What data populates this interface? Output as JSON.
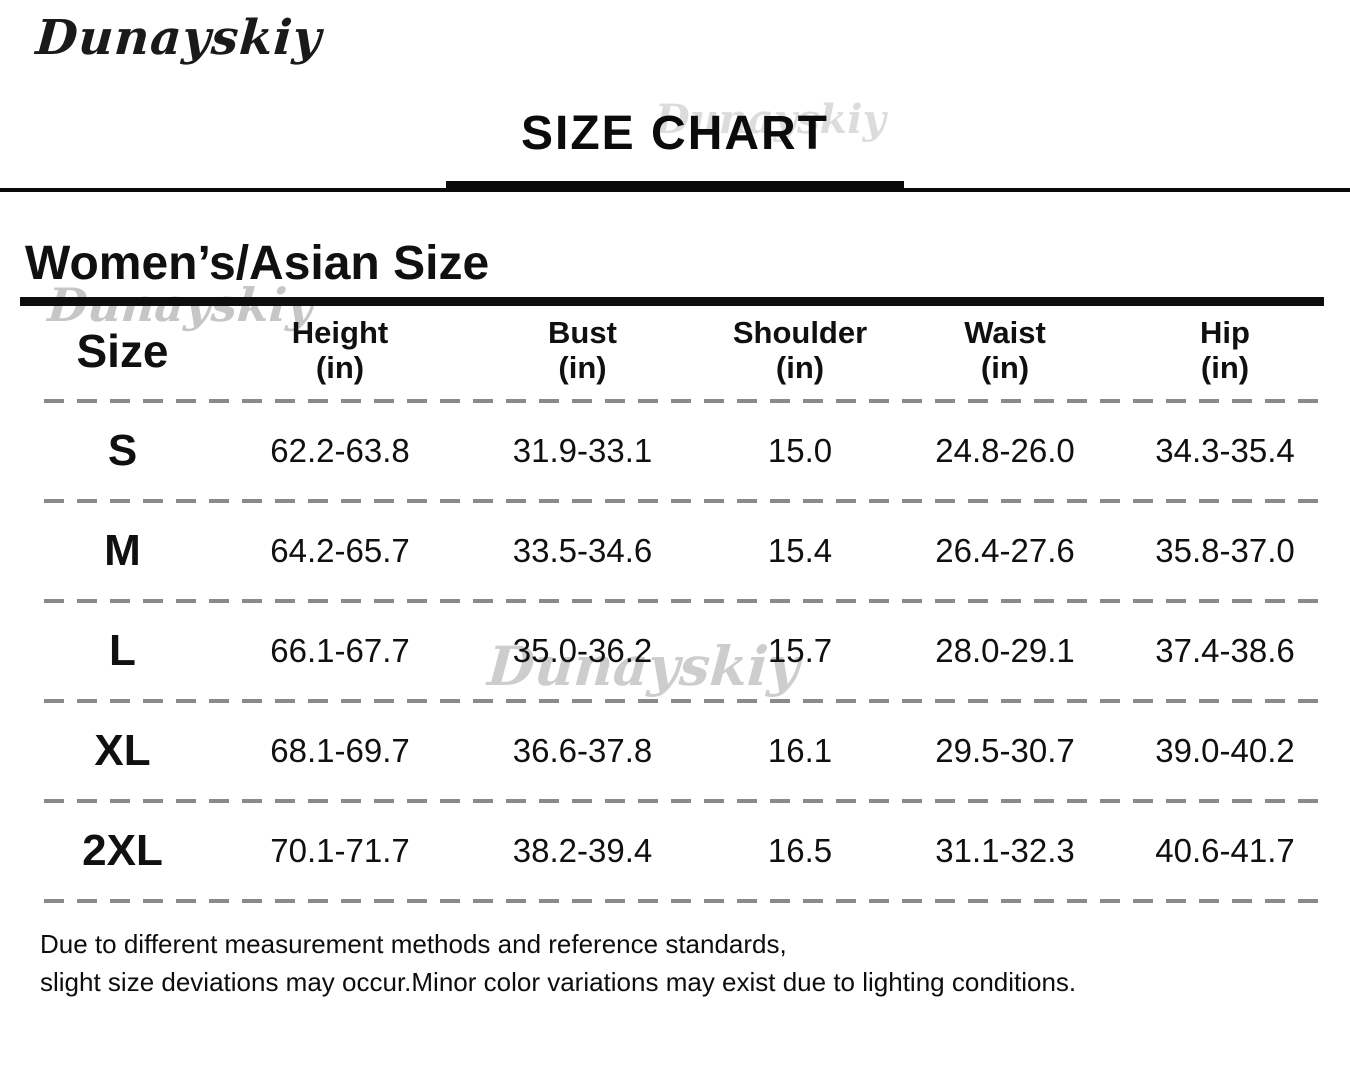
{
  "brand": {
    "logo_text": "Dunayskiy"
  },
  "watermark": {
    "text": "Dunayskiy"
  },
  "title": {
    "text": "SIZE CHART"
  },
  "section": {
    "heading": "Women’s/Asian Size"
  },
  "table": {
    "columns": [
      {
        "label": "Size",
        "sub": ""
      },
      {
        "label": "Height",
        "sub": "(in)"
      },
      {
        "label": "Bust",
        "sub": "(in)"
      },
      {
        "label": "Shoulder",
        "sub": "(in)"
      },
      {
        "label": "Waist",
        "sub": "(in)"
      },
      {
        "label": "Hip",
        "sub": "(in)"
      }
    ],
    "rows": [
      {
        "size": "S",
        "height": "62.2-63.8",
        "bust": "31.9-33.1",
        "shoulder": "15.0",
        "waist": "24.8-26.0",
        "hip": "34.3-35.4"
      },
      {
        "size": "M",
        "height": "64.2-65.7",
        "bust": "33.5-34.6",
        "shoulder": "15.4",
        "waist": "26.4-27.6",
        "hip": "35.8-37.0"
      },
      {
        "size": "L",
        "height": "66.1-67.7",
        "bust": "35.0-36.2",
        "shoulder": "15.7",
        "waist": "28.0-29.1",
        "hip": "37.4-38.6"
      },
      {
        "size": "XL",
        "height": "68.1-69.7",
        "bust": "36.6-37.8",
        "shoulder": "16.1",
        "waist": "29.5-30.7",
        "hip": "39.0-40.2"
      },
      {
        "size": "2XL",
        "height": "70.1-71.7",
        "bust": "38.2-39.4",
        "shoulder": "16.5",
        "waist": "31.1-32.3",
        "hip": "40.6-41.7"
      }
    ]
  },
  "footer": {
    "line1": "Due to different measurement methods and reference standards,",
    "line2": "slight size deviations may occur.Minor color variations may exist due to lighting conditions."
  },
  "colors": {
    "text": "#101010",
    "divider": "#0a0a0a",
    "dash": "#8a8a8a",
    "watermark": "#c6c6c6"
  }
}
